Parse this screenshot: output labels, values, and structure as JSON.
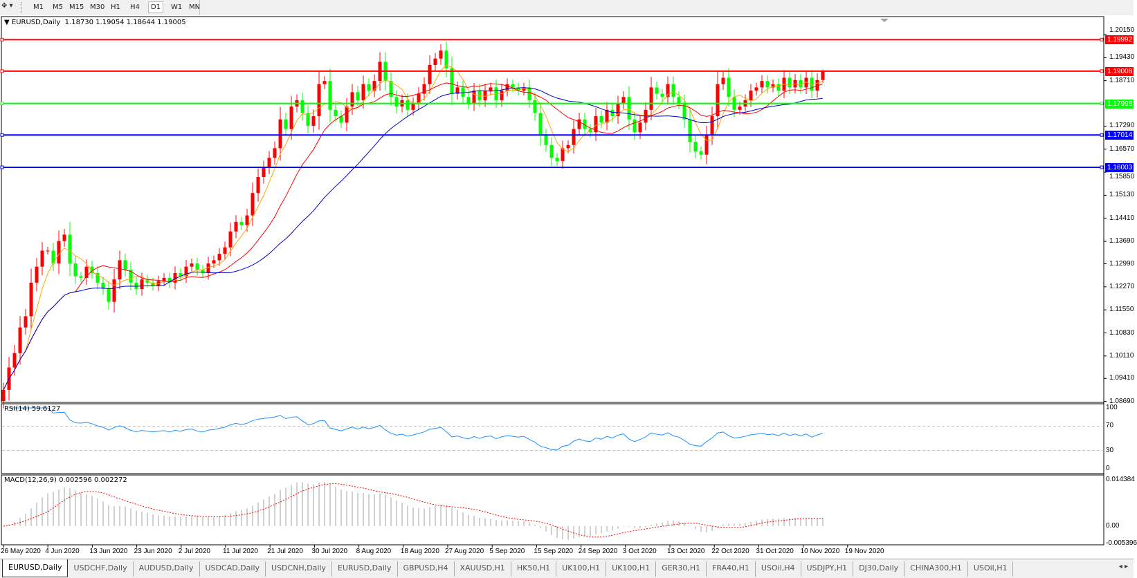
{
  "toolbar": {
    "icon": "crosshair-cursor-icon",
    "timeframes": [
      "M1",
      "M5",
      "M15",
      "M30",
      "H1",
      "H4",
      "D1",
      "W1",
      "MN"
    ],
    "active_timeframe": "D1"
  },
  "chart": {
    "symbol": "EURUSD,Daily",
    "ohlc": "1.18730 1.19054 1.18644 1.19005",
    "price_axis": [
      "1.20150",
      "1.19430",
      "1.18710",
      "1.17290",
      "1.16570",
      "1.15850",
      "1.15130",
      "1.14410",
      "1.13690",
      "1.12990",
      "1.12270",
      "1.11550",
      "1.10830",
      "1.10110",
      "1.09410",
      "1.08690"
    ],
    "hlines": [
      {
        "price": 1.19992,
        "label": "1.19992",
        "color": "#ff0000"
      },
      {
        "price": 1.19008,
        "label": "1.19008",
        "color": "#ff0000"
      },
      {
        "price": 1.17998,
        "label": "1.17998",
        "color": "#00ff00"
      },
      {
        "price": 1.17014,
        "label": "1.17014",
        "color": "#0000ff"
      },
      {
        "price": 1.16003,
        "label": "1.16003",
        "color": "#0000ff"
      }
    ],
    "dates": [
      "26 May 2020",
      "4 Jun 2020",
      "13 Jun 2020",
      "23 Jun 2020",
      "2 Jul 2020",
      "11 Jul 2020",
      "21 Jul 2020",
      "30 Jul 2020",
      "8 Aug 2020",
      "18 Aug 2020",
      "27 Aug 2020",
      "5 Sep 2020",
      "15 Sep 2020",
      "24 Sep 2020",
      "3 Oct 2020",
      "13 Oct 2020",
      "22 Oct 2020",
      "31 Oct 2020",
      "10 Nov 2020",
      "19 Nov 2020"
    ]
  },
  "rsi": {
    "label": "RSI(14) 59.6127",
    "axis": [
      "100",
      "70",
      "30",
      "0"
    ],
    "line_color": "#1e90ff"
  },
  "macd": {
    "label": "MACD(12,26,9) 0.002596 0.002272",
    "axis": [
      "0.014384",
      "0.00",
      "-0.005396"
    ],
    "histogram_color": "#a0a0a0",
    "signal_color": "#ff0000"
  },
  "tabs": [
    "EURUSD,Daily",
    "USDCHF,Daily",
    "AUDUSD,Daily",
    "USDCAD,Daily",
    "USDCNH,Daily",
    "EURUSD,Daily",
    "GBPUSD,H4",
    "XAUUSD,H1",
    "HK50,H1",
    "UK100,H1",
    "UK100,H1",
    "GER30,H1",
    "FRA40,H1",
    "USOil,H4",
    "USDJPY,H1",
    "DJ30,Daily",
    "CHINA300,H1",
    "USOil,H1"
  ],
  "tab_scroll": "◂ ▸",
  "chart_data": {
    "type": "candlestick",
    "symbol": "EURUSD",
    "timeframe": "Daily",
    "bull_color": "#ff0000",
    "bear_color": "#00ff00",
    "moving_averages": [
      {
        "period": 5,
        "color": "#ffa500"
      },
      {
        "period": 14,
        "color": "#ff0000"
      },
      {
        "period": 30,
        "color": "#0000cd"
      }
    ],
    "first_open": 1.087,
    "close": [
      1.0905,
      1.0975,
      1.102,
      1.11,
      1.1135,
      1.124,
      1.129,
      1.134,
      1.134,
      1.13,
      1.137,
      1.139,
      1.13,
      1.126,
      1.1255,
      1.129,
      1.127,
      1.124,
      1.122,
      1.118,
      1.125,
      1.131,
      1.128,
      1.124,
      1.122,
      1.125,
      1.124,
      1.123,
      1.1245,
      1.1255,
      1.124,
      1.127,
      1.126,
      1.129,
      1.13,
      1.128,
      1.127,
      1.13,
      1.131,
      1.133,
      1.135,
      1.14,
      1.143,
      1.142,
      1.145,
      1.152,
      1.157,
      1.16,
      1.163,
      1.166,
      1.175,
      1.172,
      1.179,
      1.181,
      1.177,
      1.173,
      1.176,
      1.186,
      1.187,
      1.178,
      1.176,
      1.174,
      1.179,
      1.1835,
      1.181,
      1.186,
      1.184,
      1.187,
      1.193,
      1.187,
      1.182,
      1.179,
      1.181,
      1.178,
      1.18,
      1.183,
      1.186,
      1.192,
      1.194,
      1.1965,
      1.191,
      1.183,
      1.185,
      1.182,
      1.18,
      1.184,
      1.181,
      1.184,
      1.185,
      1.181,
      1.184,
      1.186,
      1.185,
      1.184,
      1.185,
      1.181,
      1.177,
      1.17,
      1.167,
      1.163,
      1.162,
      1.166,
      1.167,
      1.172,
      1.175,
      1.172,
      1.171,
      1.176,
      1.174,
      1.178,
      1.176,
      1.18,
      1.182,
      1.175,
      1.171,
      1.174,
      1.178,
      1.185,
      1.183,
      1.182,
      1.186,
      1.182,
      1.18,
      1.175,
      1.168,
      1.165,
      1.164,
      1.17,
      1.176,
      1.186,
      1.188,
      1.182,
      1.178,
      1.179,
      1.181,
      1.184,
      1.185,
      1.187,
      1.185,
      1.186,
      1.184,
      1.188,
      1.185,
      1.1873,
      1.185,
      1.188,
      1.184,
      1.1873,
      1.19005
    ],
    "last_bar": {
      "open": 1.1873,
      "high": 1.19054,
      "low": 1.18644,
      "close": 1.19005
    },
    "rsi_levels": [
      70,
      30
    ],
    "rsi_range": [
      0,
      100
    ],
    "price_range": [
      1.0869,
      1.2015
    ],
    "macd_range": [
      -0.005396,
      0.014384
    ]
  }
}
